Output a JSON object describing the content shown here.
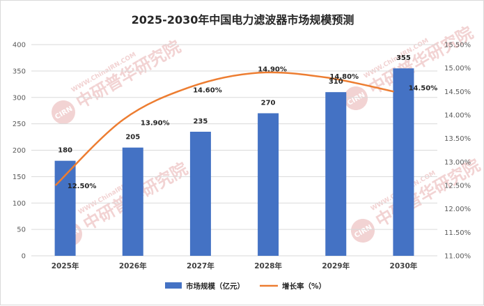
{
  "title": "2025-2030年中国电力滤波器市场规模预测",
  "colors": {
    "bar": "#4472c4",
    "line": "#ed7d31",
    "grid": "#d9d9d9",
    "watermark": "#f2d3d3"
  },
  "watermark": {
    "logo": "CIRN",
    "cn_text": "中研普华研究院",
    "url_text": "WWW.ChinaIRN.COM"
  },
  "chart_data": {
    "type": "bar",
    "categories": [
      "2025年",
      "2026年",
      "2027年",
      "2028年",
      "2029年",
      "2030年"
    ],
    "series": [
      {
        "name": "市场规模（亿元）",
        "type": "bar",
        "axis": "left",
        "values": [
          180,
          205,
          235,
          270,
          310,
          355
        ],
        "labels": [
          "180",
          "205",
          "235",
          "270",
          "310",
          "355"
        ]
      },
      {
        "name": "增长率（%）",
        "type": "line",
        "axis": "right",
        "values": [
          12.5,
          13.9,
          14.6,
          14.9,
          14.8,
          14.5
        ],
        "labels": [
          "12.50%",
          "13.90%",
          "14.60%",
          "14.90%",
          "14.80%",
          "14.50%"
        ]
      }
    ],
    "y_left": {
      "min": 0,
      "max": 400,
      "ticks": [
        "0",
        "50",
        "100",
        "150",
        "200",
        "250",
        "300",
        "350",
        "400"
      ]
    },
    "y_right": {
      "min": 11.0,
      "max": 15.5,
      "ticks": [
        "11.00%",
        "11.50%",
        "12.00%",
        "12.50%",
        "13.00%",
        "13.50%",
        "14.00%",
        "14.50%",
        "15.00%",
        "15.50%"
      ]
    },
    "grid": true,
    "legend_position": "bottom"
  }
}
